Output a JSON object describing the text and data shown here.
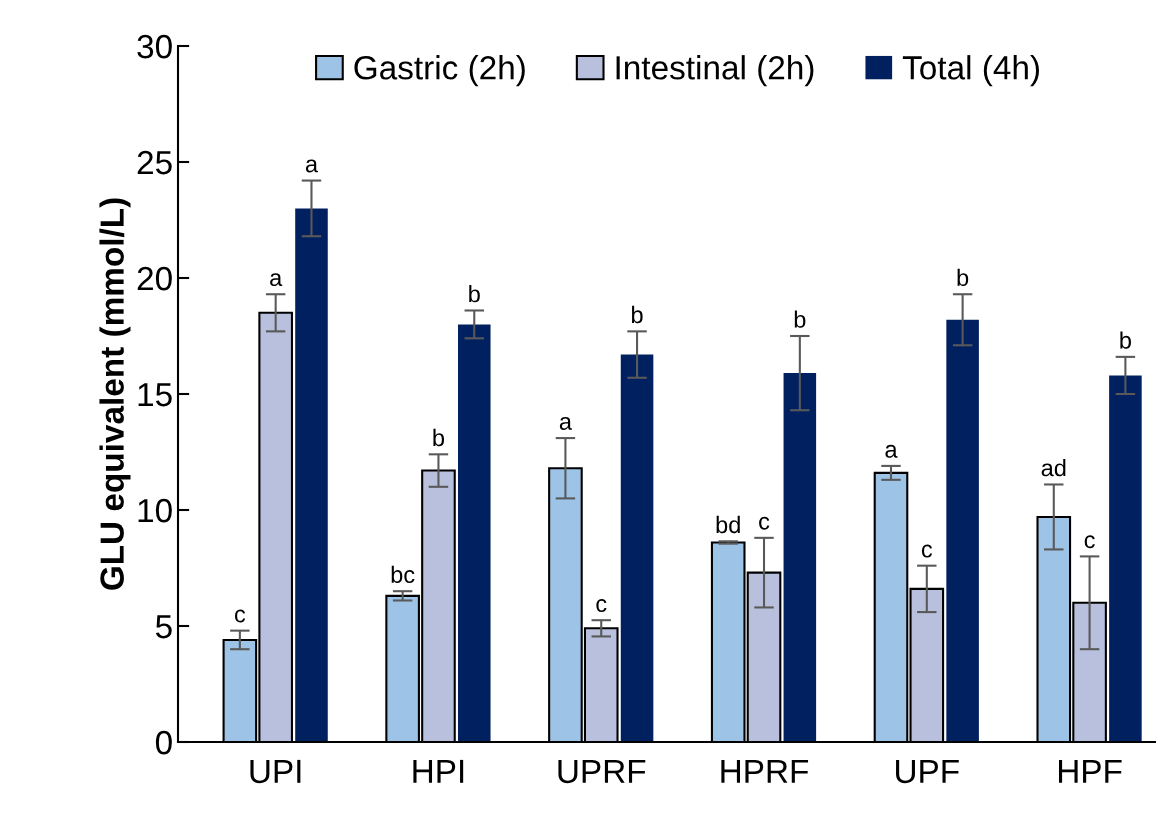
{
  "chart_data": {
    "type": "bar",
    "ylabel": "GLU equivalent (mmol/L)",
    "categories": [
      "UPI",
      "HPI",
      "UPRF",
      "HPRF",
      "UPF",
      "HPF"
    ],
    "series": [
      {
        "name": "Gastric (2h)",
        "color": "#9dc3e6",
        "values": [
          4.4,
          6.3,
          11.8,
          8.6,
          11.6,
          9.7
        ],
        "errors": [
          0.4,
          0.2,
          1.3,
          0.05,
          0.3,
          1.4
        ],
        "value_labels": [
          "c",
          "bc",
          "a",
          "bd",
          "a",
          "ad"
        ]
      },
      {
        "name": "Intestinal (2h)",
        "color": "#b8c0dd",
        "values": [
          18.5,
          11.7,
          4.9,
          7.3,
          6.6,
          6.0
        ],
        "errors": [
          0.8,
          0.7,
          0.35,
          1.5,
          1.0,
          2.0
        ],
        "value_labels": [
          "a",
          "b",
          "c",
          "c",
          "c",
          "c"
        ]
      },
      {
        "name": "Total (4h)",
        "color": "#002060",
        "values": [
          23.0,
          18.0,
          16.7,
          15.9,
          18.2,
          15.8
        ],
        "errors": [
          1.2,
          0.6,
          1.0,
          1.6,
          1.1,
          0.8
        ],
        "value_labels": [
          "a",
          "b",
          "b",
          "b",
          "b",
          "b"
        ]
      }
    ],
    "ylim": [
      0,
      30
    ],
    "yticks": [
      0,
      5,
      10,
      15,
      20,
      25,
      30
    ],
    "grid": false,
    "legend": "top"
  }
}
